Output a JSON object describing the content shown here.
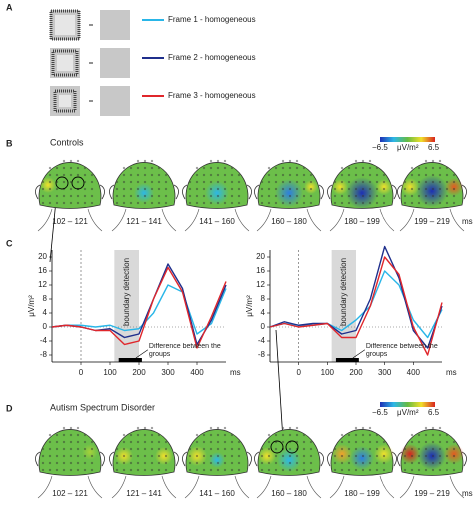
{
  "panel_a": {
    "label": "A"
  },
  "panel_b": {
    "label": "B",
    "title": "Controls",
    "colorbar": {
      "range": [
        {
          "value": -6.5,
          "label": "−6.5"
        },
        6.5
      ],
      "unit": "μV/m²"
    },
    "windows": [
      "102 – 121",
      "121 – 141",
      "141 – 160",
      "160 – 180",
      "180 – 199",
      "199 – 219"
    ],
    "unit": "ms"
  },
  "panel_c": {
    "label": "C"
  },
  "panel_d": {
    "label": "D",
    "title": "Autism Spectrum Disorder",
    "colorbar": {
      "range": [
        {
          "value": -6.5,
          "label": "−6.5"
        },
        6.5
      ],
      "unit": "μV/m²"
    },
    "windows": [
      "102 – 121",
      "121 – 141",
      "141 – 160",
      "160 – 180",
      "180 – 199",
      "199 – 219"
    ],
    "unit": "ms"
  },
  "chart_data": [
    {
      "type": "line",
      "xlabel": "ms",
      "ylabel": "μV/m²",
      "x": [
        -100,
        -50,
        0,
        50,
        100,
        150,
        200,
        250,
        300,
        350,
        400,
        450,
        500
      ],
      "series": [
        {
          "name": "Frame 1 - homogeneous",
          "color": "#29b6e8",
          "values": [
            0,
            0.5,
            0.5,
            0,
            0.5,
            -1,
            -0.5,
            4,
            12,
            10,
            -2,
            1,
            11
          ]
        },
        {
          "name": "Frame 2 - homogeneous",
          "color": "#1f2f8c",
          "values": [
            0,
            0.5,
            0,
            -1,
            -0.5,
            -3,
            -2,
            8,
            18,
            11,
            -5,
            2,
            12
          ]
        },
        {
          "name": "Frame 3 - homogeneous",
          "color": "#e0262b",
          "values": [
            0,
            0.5,
            0,
            -1,
            -1,
            -5,
            -4,
            8,
            17,
            10,
            -6,
            3,
            13
          ]
        }
      ],
      "xlim": [
        -100,
        500
      ],
      "ylim": [
        -10,
        22
      ],
      "xticks": [
        0,
        100,
        200,
        300,
        400
      ],
      "yticks": [
        -8,
        -4,
        0,
        4,
        8,
        12,
        16,
        20
      ],
      "band": {
        "label": "boundary detection",
        "x": [
          115,
          200
        ]
      },
      "bar": {
        "label": "Difference between the groups",
        "x": [
          130,
          210
        ]
      }
    },
    {
      "type": "line",
      "xlabel": "ms",
      "ylabel": "μV/m²",
      "x": [
        -100,
        -50,
        0,
        50,
        100,
        150,
        200,
        250,
        300,
        350,
        400,
        450,
        500
      ],
      "series": [
        {
          "color": "#29b6e8",
          "values": [
            0,
            1,
            0.5,
            0.5,
            1,
            -1,
            2,
            6,
            16,
            12,
            2,
            -3,
            5
          ]
        },
        {
          "color": "#1f2f8c",
          "values": [
            0,
            1.5,
            0.5,
            1,
            1,
            -2,
            -1,
            8,
            23,
            14,
            -1,
            -6,
            6
          ]
        },
        {
          "color": "#e0262b",
          "values": [
            0,
            1,
            0,
            0.5,
            1,
            -3,
            -3,
            6,
            20,
            15,
            0,
            -8,
            7
          ]
        }
      ],
      "xlim": [
        -100,
        500
      ],
      "ylim": [
        -10,
        22
      ],
      "xticks": [
        0,
        100,
        200,
        300,
        400
      ],
      "yticks": [
        -8,
        -4,
        0,
        4,
        8,
        12,
        16,
        20
      ],
      "band": {
        "label": "boundary detection",
        "x": [
          115,
          200
        ]
      },
      "bar": {
        "label": "Difference between the groups",
        "x": [
          130,
          210
        ]
      }
    }
  ]
}
